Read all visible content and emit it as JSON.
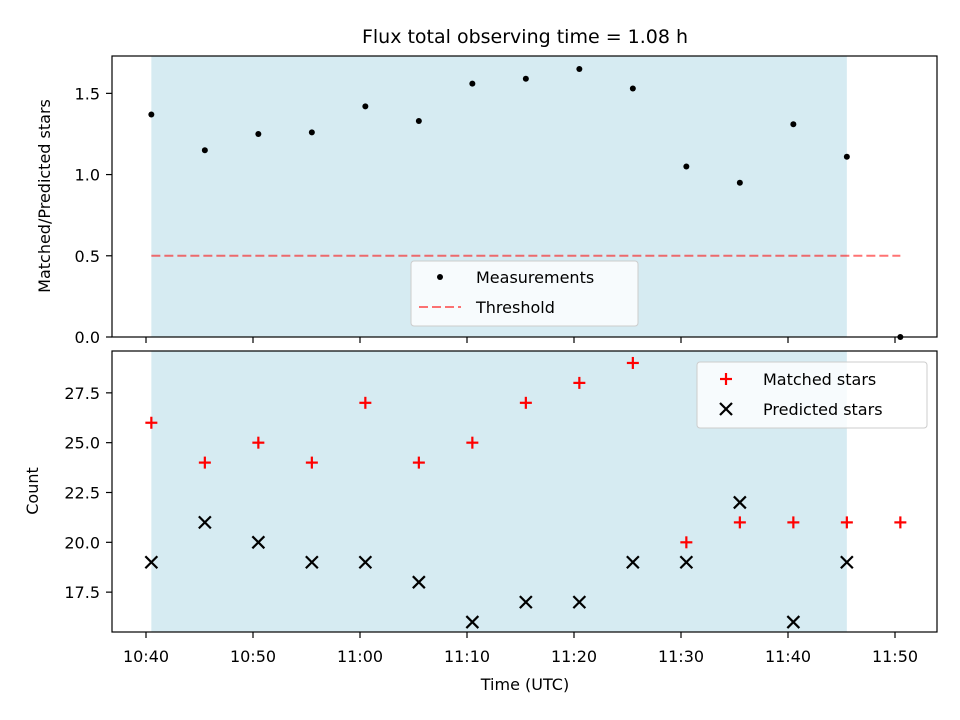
{
  "chart_data": [
    {
      "type": "scatter",
      "title": "Flux total observing time = 1.08 h",
      "xlabel": "",
      "ylabel": "Matched/Predicted stars",
      "ylim": [
        0,
        1.73
      ],
      "yticks": [
        0.0,
        0.5,
        1.0,
        1.5
      ],
      "ytick_labels": [
        "0.0",
        "0.5",
        "1.0",
        "1.5"
      ],
      "shaded_span": {
        "from": "10:40:30",
        "to": "11:45:30",
        "color": "#add8e6"
      },
      "threshold": {
        "name": "Threshold",
        "value": 0.5,
        "from": "10:40:30",
        "to": "11:50:30",
        "color": "#ff6b6b"
      },
      "series": [
        {
          "name": "Measurements",
          "marker": "dot",
          "color": "#000000",
          "x": [
            "10:40:30",
            "10:45:30",
            "10:50:30",
            "10:55:30",
            "11:00:30",
            "11:05:30",
            "11:10:30",
            "11:15:30",
            "11:20:30",
            "11:25:30",
            "11:30:30",
            "11:35:30",
            "11:40:30",
            "11:45:30",
            "11:50:30"
          ],
          "y": [
            1.37,
            1.15,
            1.25,
            1.26,
            1.42,
            1.33,
            1.56,
            1.59,
            1.65,
            1.53,
            1.05,
            0.95,
            1.31,
            1.11,
            0.0
          ]
        }
      ],
      "legend": "lower-center",
      "grid": false
    },
    {
      "type": "scatter",
      "title": "",
      "xlabel": "Time (UTC)",
      "ylabel": "Count",
      "ylim": [
        15.5,
        29.6
      ],
      "yticks": [
        17.5,
        20.0,
        22.5,
        25.0,
        27.5
      ],
      "ytick_labels": [
        "17.5",
        "20.0",
        "22.5",
        "25.0",
        "27.5"
      ],
      "xticks": [
        "10:40",
        "10:50",
        "11:00",
        "11:10",
        "11:20",
        "11:30",
        "11:40",
        "11:50"
      ],
      "shaded_span": {
        "from": "10:40:30",
        "to": "11:45:30",
        "color": "#add8e6"
      },
      "series": [
        {
          "name": "Matched stars",
          "marker": "plus",
          "color": "#ff0000",
          "x": [
            "10:40:30",
            "10:45:30",
            "10:50:30",
            "10:55:30",
            "11:00:30",
            "11:05:30",
            "11:10:30",
            "11:15:30",
            "11:20:30",
            "11:25:30",
            "11:30:30",
            "11:35:30",
            "11:40:30",
            "11:45:30",
            "11:50:30"
          ],
          "y": [
            26,
            24,
            25,
            24,
            27,
            24,
            25,
            27,
            28,
            29,
            20,
            21,
            21,
            21,
            21
          ]
        },
        {
          "name": "Predicted stars",
          "marker": "x",
          "color": "#000000",
          "x": [
            "10:40:30",
            "10:45:30",
            "10:50:30",
            "10:55:30",
            "11:00:30",
            "11:05:30",
            "11:10:30",
            "11:15:30",
            "11:20:30",
            "11:25:30",
            "11:30:30",
            "11:35:30",
            "11:40:30",
            "11:45:30"
          ],
          "y": [
            19,
            21,
            20,
            19,
            19,
            18,
            16,
            17,
            17,
            19,
            19,
            22,
            16,
            19
          ]
        }
      ],
      "legend": "top-right",
      "grid": false
    }
  ]
}
